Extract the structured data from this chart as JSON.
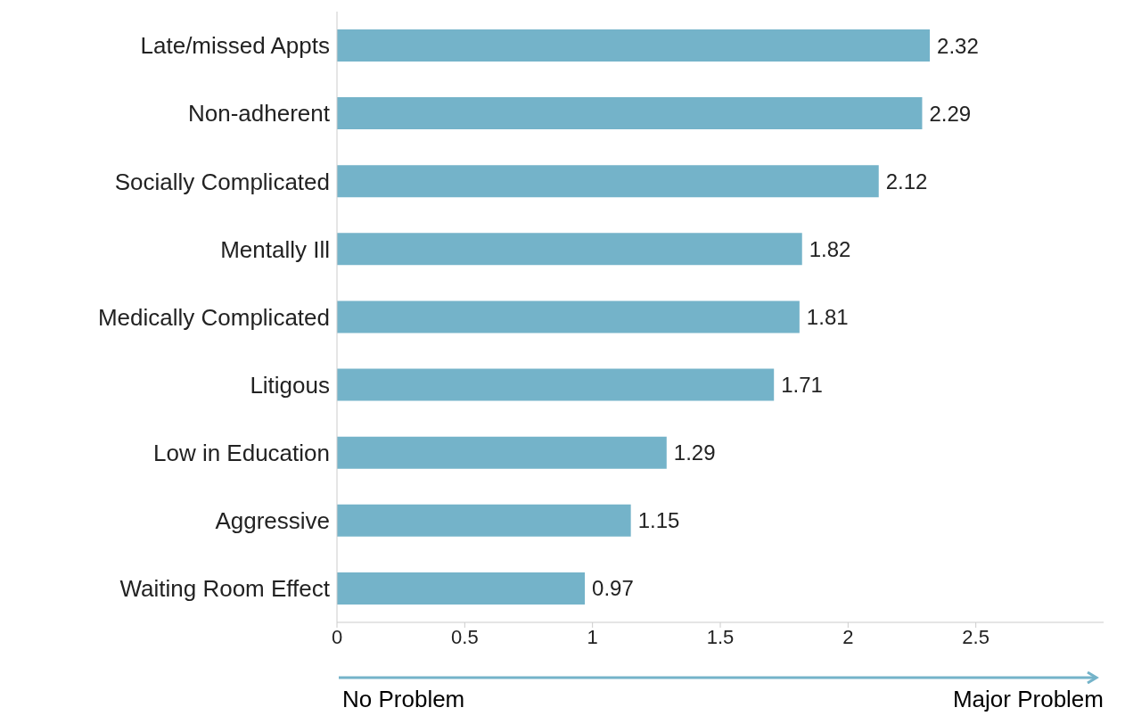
{
  "chart_data": {
    "type": "bar",
    "orientation": "horizontal",
    "categories": [
      "Late/missed Appts",
      "Non-adherent",
      "Socially Complicated",
      "Mentally Ill",
      "Medically Complicated",
      "Litigous",
      "Low in Education",
      "Aggressive",
      "Waiting Room Effect"
    ],
    "values": [
      2.32,
      2.29,
      2.12,
      1.82,
      1.81,
      1.71,
      1.29,
      1.15,
      0.97
    ],
    "color": "#74b3c9",
    "xlim": [
      0,
      3
    ],
    "xticks": [
      0,
      0.5,
      1,
      1.5,
      2,
      2.5
    ],
    "data_labels": true,
    "grid": false,
    "annotations": [
      "No Problem",
      "Major Problem"
    ]
  }
}
